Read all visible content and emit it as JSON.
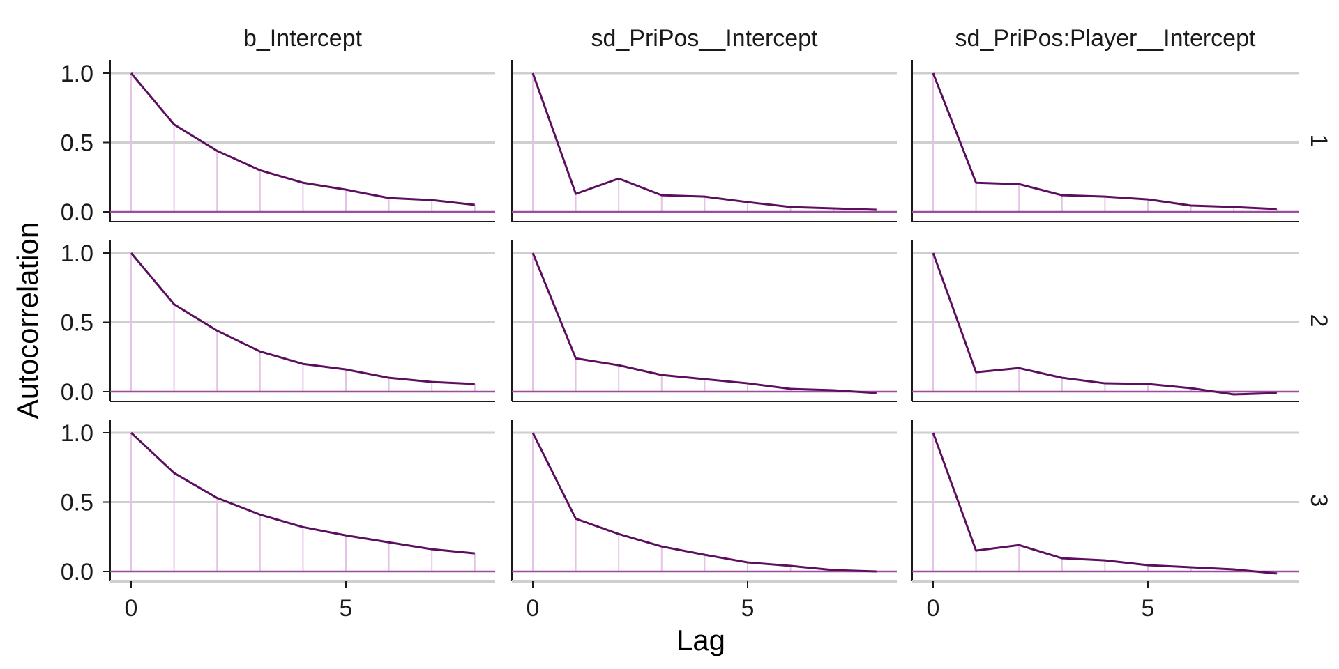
{
  "chart_data": {
    "type": "line",
    "description_style": "autocorrelation facet grid (parameters x chains)",
    "xlabel": "Lag",
    "ylabel": "Autocorrelation",
    "xlim": [
      0,
      8
    ],
    "ylim": [
      -0.07,
      1.1
    ],
    "xticks": [
      0,
      5
    ],
    "yticks": [
      0.0,
      0.5,
      1.0
    ],
    "ytick_labels": [
      "0.0",
      "0.5",
      "1.0"
    ],
    "xtick_labels": [
      "0",
      "5"
    ],
    "lags": [
      0,
      1,
      2,
      3,
      4,
      5,
      6,
      7,
      8
    ],
    "columns": [
      "b_Intercept",
      "sd_PriPos__Intercept",
      "sd_PriPos:Player__Intercept"
    ],
    "rows": [
      "1",
      "2",
      "3"
    ],
    "colors": {
      "line": "#5b0f5e",
      "stem": "#e6c3e6",
      "zero_line": "#9b4d9b",
      "grid": "#cfcfcf",
      "axis": "#1a1a1a"
    },
    "grid": true,
    "panels": [
      {
        "row": "1",
        "column": "b_Intercept",
        "values": [
          1.0,
          0.63,
          0.44,
          0.3,
          0.21,
          0.16,
          0.1,
          0.085,
          0.05
        ]
      },
      {
        "row": "1",
        "column": "sd_PriPos__Intercept",
        "values": [
          1.0,
          0.13,
          0.24,
          0.12,
          0.11,
          0.07,
          0.035,
          0.025,
          0.015
        ]
      },
      {
        "row": "1",
        "column": "sd_PriPos:Player__Intercept",
        "values": [
          1.0,
          0.21,
          0.2,
          0.12,
          0.11,
          0.09,
          0.045,
          0.035,
          0.02
        ]
      },
      {
        "row": "2",
        "column": "b_Intercept",
        "values": [
          1.0,
          0.63,
          0.44,
          0.29,
          0.2,
          0.16,
          0.1,
          0.07,
          0.055
        ]
      },
      {
        "row": "2",
        "column": "sd_PriPos__Intercept",
        "values": [
          1.0,
          0.24,
          0.19,
          0.12,
          0.09,
          0.06,
          0.02,
          0.01,
          -0.01
        ]
      },
      {
        "row": "2",
        "column": "sd_PriPos:Player__Intercept",
        "values": [
          1.0,
          0.14,
          0.17,
          0.1,
          0.06,
          0.055,
          0.025,
          -0.02,
          -0.01
        ]
      },
      {
        "row": "3",
        "column": "b_Intercept",
        "values": [
          1.0,
          0.71,
          0.53,
          0.41,
          0.32,
          0.26,
          0.21,
          0.16,
          0.13
        ]
      },
      {
        "row": "3",
        "column": "sd_PriPos__Intercept",
        "values": [
          1.0,
          0.38,
          0.27,
          0.18,
          0.12,
          0.065,
          0.04,
          0.01,
          0.0
        ]
      },
      {
        "row": "3",
        "column": "sd_PriPos:Player__Intercept",
        "values": [
          1.0,
          0.15,
          0.19,
          0.095,
          0.08,
          0.045,
          0.03,
          0.015,
          -0.015
        ]
      }
    ]
  }
}
